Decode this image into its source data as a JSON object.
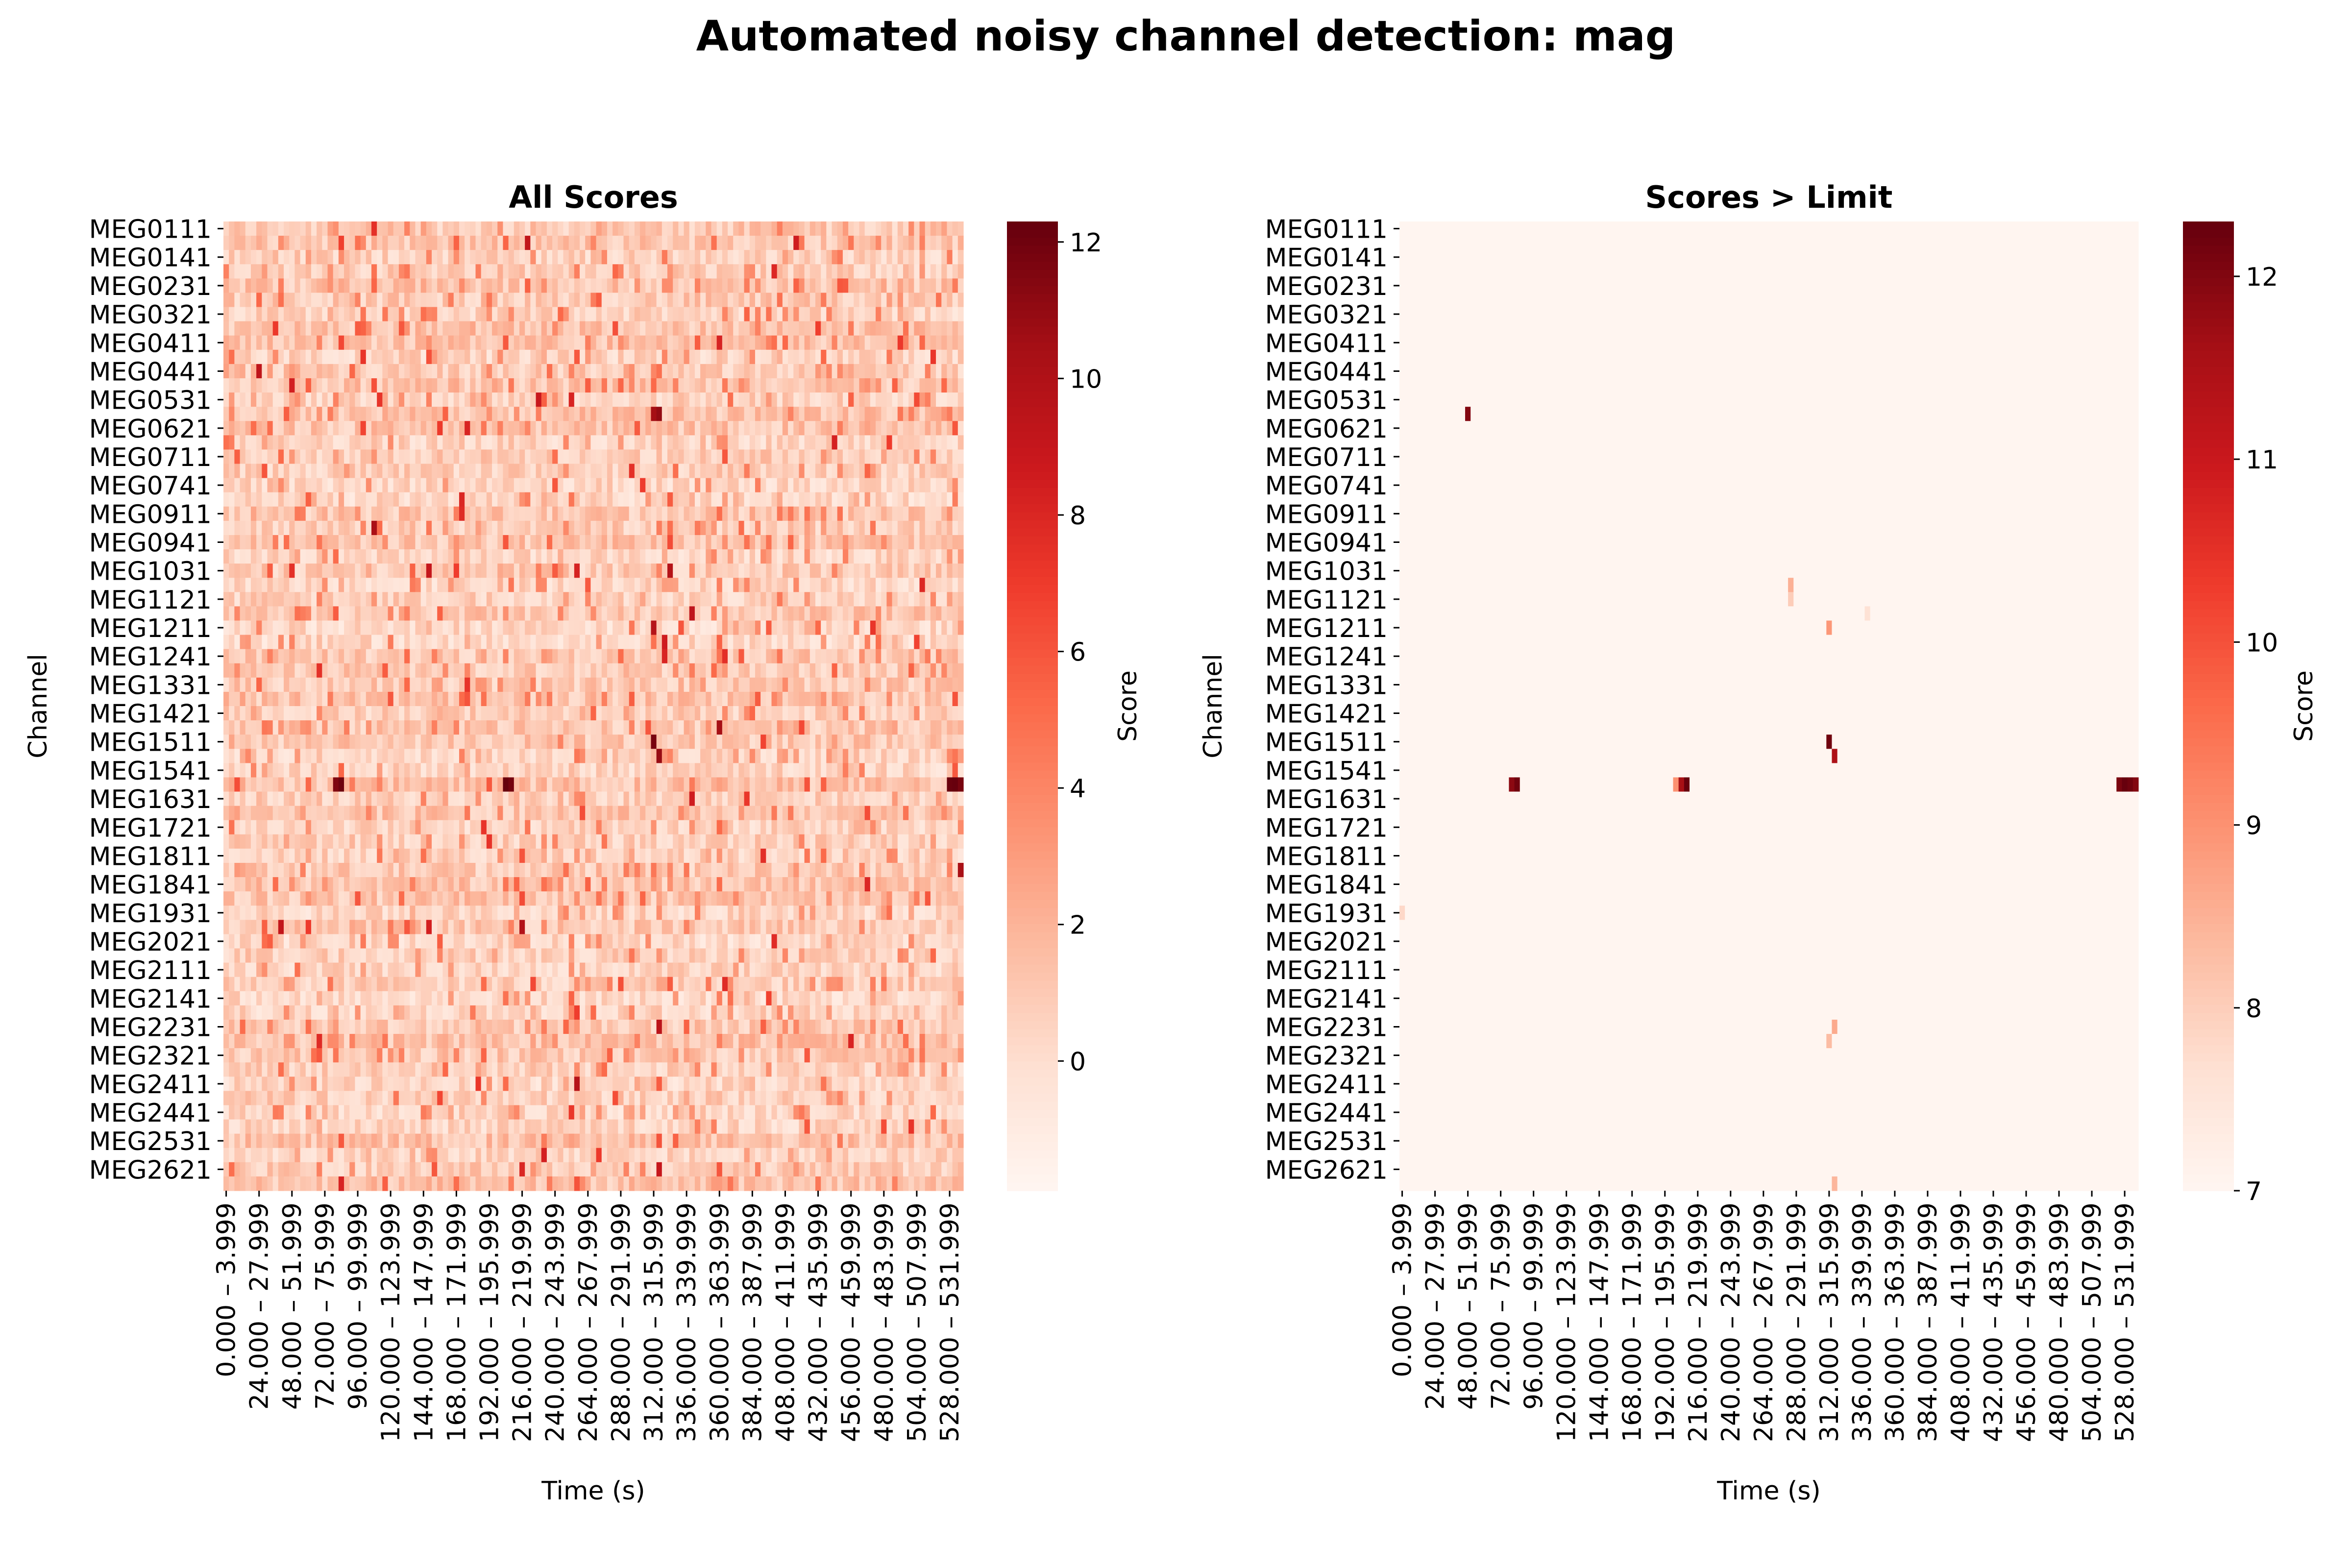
{
  "figure": {
    "suptitle": "Automated noisy channel detection: mag"
  },
  "chart_data": [
    {
      "type": "heatmap",
      "title": "All Scores",
      "xlabel": "Time (s)",
      "ylabel": "Channel",
      "colorbar_label": "Score",
      "colormap": "Reds",
      "vmin": -1.9,
      "vmax": 12.3,
      "colorbar_ticks": [
        "12",
        "10",
        "8",
        "6",
        "4",
        "2",
        "0"
      ],
      "colorbar_tick_values": [
        12,
        10,
        8,
        6,
        4,
        2,
        0
      ],
      "n_rows": 68,
      "n_cols": 135,
      "row_labels": [
        "MEG0111",
        "MEG0141",
        "MEG0231",
        "MEG0321",
        "MEG0411",
        "MEG0441",
        "MEG0531",
        "MEG0621",
        "MEG0711",
        "MEG0741",
        "MEG0911",
        "MEG0941",
        "MEG1031",
        "MEG1121",
        "MEG1211",
        "MEG1241",
        "MEG1331",
        "MEG1421",
        "MEG1511",
        "MEG1541",
        "MEG1631",
        "MEG1721",
        "MEG1811",
        "MEG1841",
        "MEG1931",
        "MEG2021",
        "MEG2111",
        "MEG2141",
        "MEG2231",
        "MEG2321",
        "MEG2411",
        "MEG2441",
        "MEG2531",
        "MEG2621"
      ],
      "row_label_step": 2,
      "col_labels": [
        "0.000 – 3.999",
        "24.000 – 27.999",
        "48.000 – 51.999",
        "72.000 – 75.999",
        "96.000 – 99.999",
        "120.000 – 123.999",
        "144.000 – 147.999",
        "168.000 – 171.999",
        "192.000 – 195.999",
        "216.000 – 219.999",
        "240.000 – 243.999",
        "264.000 – 267.999",
        "288.000 – 291.999",
        "312.000 – 315.999",
        "336.000 – 339.999",
        "360.000 – 363.999",
        "384.000 – 387.999",
        "408.000 – 411.999",
        "432.000 – 435.999",
        "456.000 – 459.999",
        "480.000 – 483.999",
        "504.000 – 507.999",
        "528.000 – 531.999"
      ],
      "col_label_step": 6,
      "notable_cells": [
        {
          "row": "MEG1541",
          "time": "96.000 – 99.999",
          "score": 12.1
        },
        {
          "row": "MEG1541",
          "time": "216.000 – 219.999",
          "score": 12.3
        },
        {
          "row": "MEG1541",
          "time": "528.000 – 531.999",
          "score": 12.2
        },
        {
          "row": "MEG0531",
          "time": "340.000 – 343.999",
          "score": 11.8
        },
        {
          "row": "MEG0941",
          "time": "312.000 – 315.999",
          "score": 10.5
        },
        {
          "row": "MEG0911",
          "time": "84.000 – 87.999",
          "score": 11.0
        },
        {
          "row": "MEG2321",
          "time": "340.000 – 343.999",
          "score": 9.5
        }
      ]
    },
    {
      "type": "heatmap",
      "title": "Scores > Limit",
      "xlabel": "Time (s)",
      "ylabel": "Channel",
      "colorbar_label": "Score",
      "colormap": "Reds",
      "vmin": 7,
      "vmax": 12.3,
      "colorbar_ticks": [
        "12",
        "11",
        "10",
        "9",
        "8",
        "7"
      ],
      "colorbar_tick_values": [
        12,
        11,
        10,
        9,
        8,
        7
      ],
      "n_rows": 68,
      "n_cols": 135,
      "row_labels": [
        "MEG0111",
        "MEG0141",
        "MEG0231",
        "MEG0321",
        "MEG0411",
        "MEG0441",
        "MEG0531",
        "MEG0621",
        "MEG0711",
        "MEG0741",
        "MEG0911",
        "MEG0941",
        "MEG1031",
        "MEG1121",
        "MEG1211",
        "MEG1241",
        "MEG1331",
        "MEG1421",
        "MEG1511",
        "MEG1541",
        "MEG1631",
        "MEG1721",
        "MEG1811",
        "MEG1841",
        "MEG1931",
        "MEG2021",
        "MEG2111",
        "MEG2141",
        "MEG2231",
        "MEG2321",
        "MEG2411",
        "MEG2441",
        "MEG2531",
        "MEG2621"
      ],
      "row_label_step": 2,
      "col_labels": [
        "0.000 – 3.999",
        "24.000 – 27.999",
        "48.000 – 51.999",
        "72.000 – 75.999",
        "96.000 – 99.999",
        "120.000 – 123.999",
        "144.000 – 147.999",
        "168.000 – 171.999",
        "192.000 – 195.999",
        "216.000 – 219.999",
        "240.000 – 243.999",
        "264.000 – 267.999",
        "288.000 – 291.999",
        "312.000 – 315.999",
        "336.000 – 339.999",
        "360.000 – 363.999",
        "384.000 – 387.999",
        "408.000 – 411.999",
        "432.000 – 435.999",
        "456.000 – 459.999",
        "480.000 – 483.999",
        "504.000 – 507.999",
        "528.000 – 531.999"
      ],
      "col_label_step": 6,
      "cells": [
        {
          "row_index": 13,
          "col_index": 12,
          "score": 12.0
        },
        {
          "row_index": 25,
          "col_index": 71,
          "score": 8.5
        },
        {
          "row_index": 26,
          "col_index": 71,
          "score": 8.0
        },
        {
          "row_index": 27,
          "col_index": 85,
          "score": 7.6
        },
        {
          "row_index": 28,
          "col_index": 78,
          "score": 8.9
        },
        {
          "row_index": 36,
          "col_index": 78,
          "score": 12.2
        },
        {
          "row_index": 37,
          "col_index": 79,
          "score": 11.5
        },
        {
          "row_index": 56,
          "col_index": 79,
          "score": 8.6
        },
        {
          "row_index": 57,
          "col_index": 78,
          "score": 8.3
        },
        {
          "row_index": 67,
          "col_index": 79,
          "score": 8.4
        },
        {
          "row_index": 48,
          "col_index": 0,
          "score": 7.8
        },
        {
          "row_index": 39,
          "col_index": 20,
          "score": 11.9
        },
        {
          "row_index": 39,
          "col_index": 21,
          "score": 12.2
        },
        {
          "row_index": 39,
          "col_index": 50,
          "score": 9.0
        },
        {
          "row_index": 39,
          "col_index": 51,
          "score": 11.6
        },
        {
          "row_index": 39,
          "col_index": 52,
          "score": 12.3
        },
        {
          "row_index": 39,
          "col_index": 131,
          "score": 12.1
        },
        {
          "row_index": 39,
          "col_index": 132,
          "score": 12.3
        },
        {
          "row_index": 39,
          "col_index": 133,
          "score": 12.2
        },
        {
          "row_index": 39,
          "col_index": 134,
          "score": 12.0
        }
      ]
    }
  ]
}
